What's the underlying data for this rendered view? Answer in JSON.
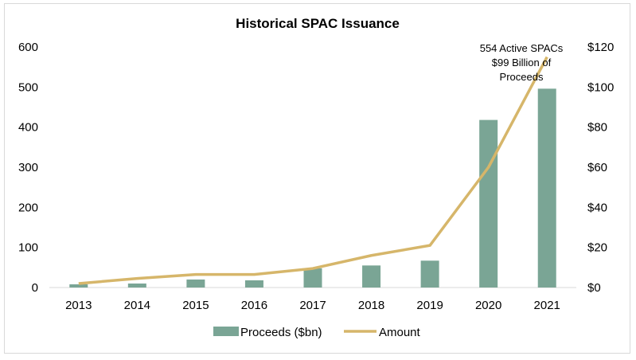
{
  "chart_data": {
    "type": "bar",
    "title": "Historical SPAC Issuance",
    "categories": [
      "2013",
      "2014",
      "2015",
      "2016",
      "2017",
      "2018",
      "2019",
      "2020",
      "2021"
    ],
    "series": [
      {
        "name": "Proceeds ($bn)",
        "type": "bar",
        "axis": "left",
        "color": "#7aa595",
        "values": [
          8,
          10,
          20,
          18,
          48,
          55,
          67,
          418,
          496
        ]
      },
      {
        "name": "Amount",
        "type": "line",
        "axis": "right",
        "color": "#d6b66a",
        "values": [
          2,
          4.5,
          6.5,
          6.5,
          9.5,
          16,
          21,
          60,
          115
        ]
      }
    ],
    "y_left": {
      "min": 0,
      "max": 600,
      "ticks": [
        "0",
        "100",
        "200",
        "300",
        "400",
        "500",
        "600"
      ]
    },
    "y_right": {
      "min": 0,
      "max": 120,
      "ticks": [
        "$0",
        "$20",
        "$40",
        "$60",
        "$80",
        "$100",
        "$120"
      ]
    },
    "annotation": [
      "554 Active SPACs",
      "$99 Billion of",
      "Proceeds"
    ],
    "legend_position": "bottom",
    "grid": false
  }
}
